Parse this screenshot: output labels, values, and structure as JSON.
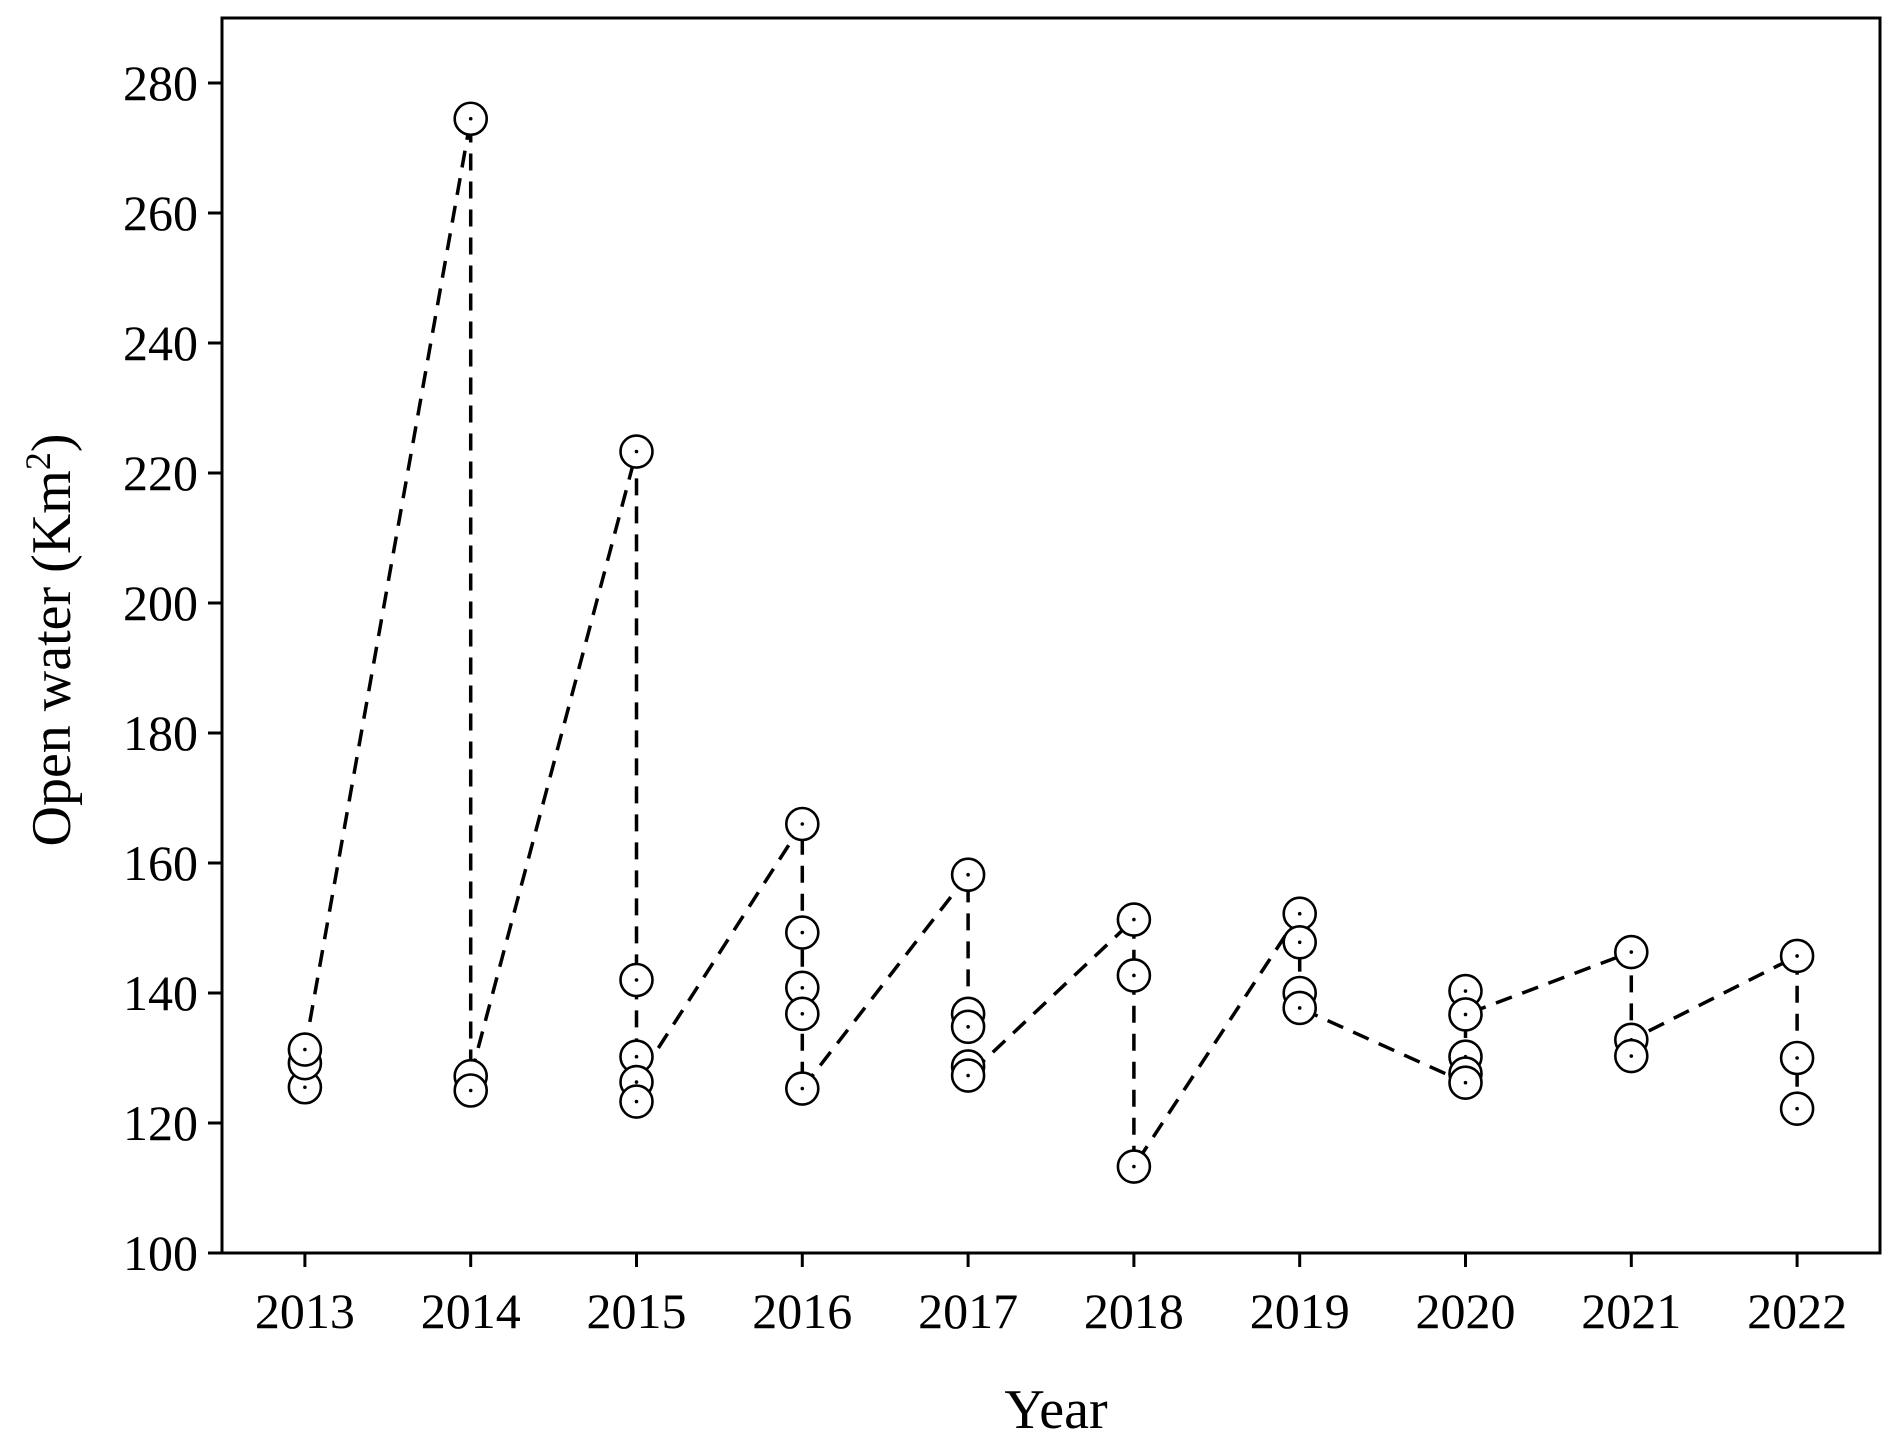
{
  "chart_data": {
    "type": "scatter",
    "title": "",
    "xlabel": "Year",
    "ylabel": "Open water (Km",
    "ylabel_sup": "2",
    "ylabel_suffix": ")",
    "xlim": [
      2012.5,
      2022.5
    ],
    "ylim": [
      100,
      290
    ],
    "xticks": [
      2013,
      2014,
      2015,
      2016,
      2017,
      2018,
      2019,
      2020,
      2021,
      2022
    ],
    "yticks": [
      100,
      120,
      140,
      160,
      180,
      200,
      220,
      240,
      260,
      280
    ],
    "grid": false,
    "legend": "none",
    "marker": "open-circle",
    "line_style": "dashed",
    "points": [
      {
        "x": 2013,
        "y": 125.5
      },
      {
        "x": 2013,
        "y": 129.2
      },
      {
        "x": 2013,
        "y": 131.3
      },
      {
        "x": 2014,
        "y": 274.5
      },
      {
        "x": 2014,
        "y": 127.2
      },
      {
        "x": 2014,
        "y": 125.0
      },
      {
        "x": 2015,
        "y": 223.3
      },
      {
        "x": 2015,
        "y": 142.0
      },
      {
        "x": 2015,
        "y": 130.2
      },
      {
        "x": 2015,
        "y": 126.3
      },
      {
        "x": 2015,
        "y": 123.3
      },
      {
        "x": 2016,
        "y": 166.0
      },
      {
        "x": 2016,
        "y": 149.3
      },
      {
        "x": 2016,
        "y": 140.8
      },
      {
        "x": 2016,
        "y": 136.8
      },
      {
        "x": 2016,
        "y": 125.3
      },
      {
        "x": 2017,
        "y": 158.2
      },
      {
        "x": 2017,
        "y": 136.8
      },
      {
        "x": 2017,
        "y": 134.8
      },
      {
        "x": 2017,
        "y": 128.7
      },
      {
        "x": 2017,
        "y": 127.3
      },
      {
        "x": 2018,
        "y": 151.3
      },
      {
        "x": 2018,
        "y": 142.7
      },
      {
        "x": 2018,
        "y": 113.3
      },
      {
        "x": 2019,
        "y": 152.2
      },
      {
        "x": 2019,
        "y": 147.8
      },
      {
        "x": 2019,
        "y": 140.0
      },
      {
        "x": 2019,
        "y": 137.7
      },
      {
        "x": 2020,
        "y": 140.3
      },
      {
        "x": 2020,
        "y": 136.7
      },
      {
        "x": 2020,
        "y": 130.2
      },
      {
        "x": 2020,
        "y": 127.6
      },
      {
        "x": 2020,
        "y": 126.2
      },
      {
        "x": 2021,
        "y": 146.3
      },
      {
        "x": 2021,
        "y": 132.8
      },
      {
        "x": 2021,
        "y": 130.3
      },
      {
        "x": 2022,
        "y": 145.7
      },
      {
        "x": 2022,
        "y": 130.0
      },
      {
        "x": 2022,
        "y": 122.2
      }
    ],
    "line_path": [
      {
        "x": 2013,
        "y": 131.3
      },
      {
        "x": 2014,
        "y": 274.5
      },
      {
        "x": 2014,
        "y": 127.2
      },
      {
        "x": 2015,
        "y": 223.3
      },
      {
        "x": 2015,
        "y": 126.3
      },
      {
        "x": 2016,
        "y": 166.0
      },
      {
        "x": 2016,
        "y": 125.3
      },
      {
        "x": 2017,
        "y": 158.2
      },
      {
        "x": 2017,
        "y": 127.3
      },
      {
        "x": 2018,
        "y": 151.3
      },
      {
        "x": 2018,
        "y": 113.3
      },
      {
        "x": 2019,
        "y": 152.2
      },
      {
        "x": 2019,
        "y": 137.7
      },
      {
        "x": 2020,
        "y": 126.2
      },
      {
        "x": 2020,
        "y": 136.7
      },
      {
        "x": 2021,
        "y": 146.3
      },
      {
        "x": 2021,
        "y": 132.8
      },
      {
        "x": 2022,
        "y": 145.7
      },
      {
        "x": 2022,
        "y": 122.2
      }
    ]
  }
}
